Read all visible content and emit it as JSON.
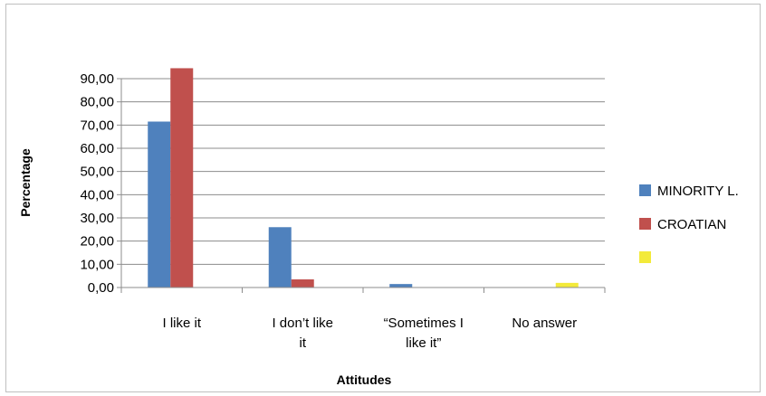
{
  "chart_data": {
    "type": "bar",
    "title": "",
    "xlabel": "Attitudes",
    "ylabel": "Percentage",
    "ylim": [
      0,
      90
    ],
    "yticks": [
      "0,00",
      "10,00",
      "20,00",
      "30,00",
      "40,00",
      "50,00",
      "60,00",
      "70,00",
      "80,00",
      "90,00"
    ],
    "categories": [
      [
        "I like it"
      ],
      [
        "I don’t like",
        "it"
      ],
      [
        "“Sometimes I",
        "like it”"
      ],
      [
        "No answer"
      ]
    ],
    "series": [
      {
        "name": "MINORITY L.",
        "color": "#4f81bd",
        "values": [
          71.5,
          26.0,
          1.5,
          0
        ]
      },
      {
        "name": "CROATIAN",
        "color": "#c0504d",
        "values": [
          94.5,
          3.5,
          0,
          0
        ]
      },
      {
        "name": "",
        "color": "#f3ea3a",
        "values": [
          0,
          0,
          0,
          2.0
        ]
      }
    ],
    "grid": true,
    "legend_position": "right"
  }
}
